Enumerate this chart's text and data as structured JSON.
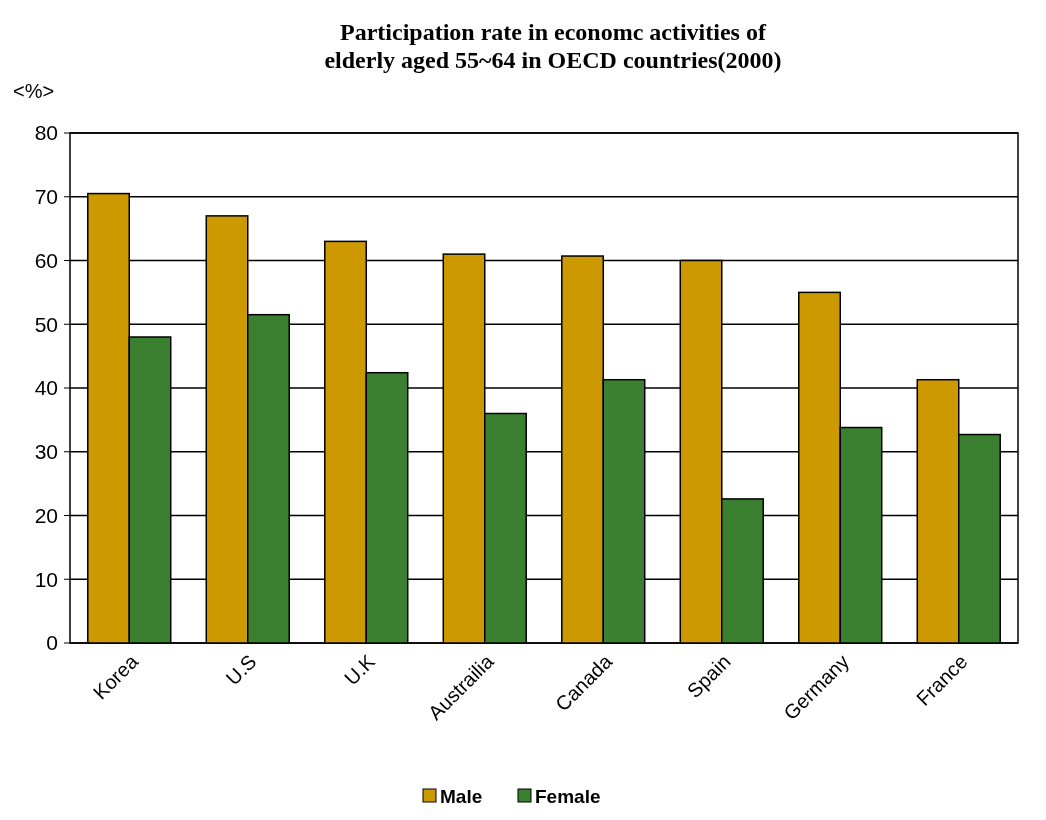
{
  "chart_data": {
    "type": "bar",
    "title": "Participation rate in economc activities of\nelderly aged 55~64 in OECD countries(2000)",
    "ylabel": "<%>",
    "categories": [
      "Korea",
      "U.S",
      "U.K",
      "Austrailia",
      "Canada",
      "Spain",
      "Germany",
      "France"
    ],
    "series": [
      {
        "name": "Male",
        "color": "#cc9900",
        "values": [
          70.5,
          67,
          63,
          61,
          60.7,
          60,
          55,
          41.3
        ]
      },
      {
        "name": "Female",
        "color": "#3a8030",
        "values": [
          48,
          51.5,
          42.4,
          36,
          41.3,
          22.6,
          33.8,
          32.7
        ]
      }
    ],
    "ylim": [
      0,
      80
    ],
    "yticks": [
      0,
      10,
      20,
      30,
      40,
      50,
      60,
      70,
      80
    ],
    "grid": "y",
    "legend": "bottom"
  }
}
